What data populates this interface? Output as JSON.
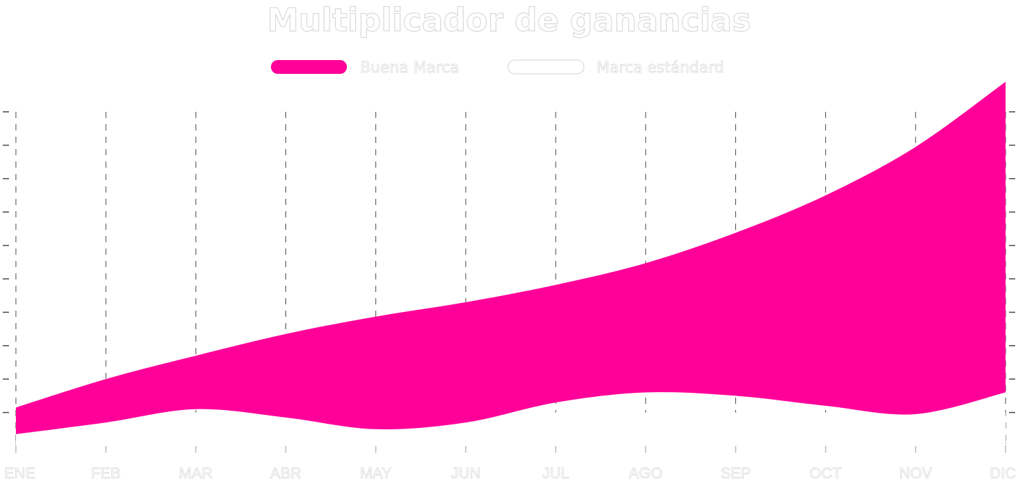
{
  "chart_data": {
    "type": "area",
    "title": "Multiplicador de ganancias",
    "categories": [
      "ENE",
      "FEB",
      "MAR",
      "ABR",
      "MAY",
      "JUN",
      "JUL",
      "AGO",
      "SEP",
      "OCT",
      "NOV",
      "DIC"
    ],
    "series": [
      {
        "name": "Buena Marca",
        "color": "#ff0099",
        "style": "filled band",
        "upper": [
          1.15,
          2.0,
          2.7,
          3.35,
          3.87,
          4.3,
          4.82,
          5.47,
          6.38,
          7.5,
          8.95,
          10.9
        ],
        "lower": [
          0.35,
          0.7,
          1.1,
          0.85,
          0.5,
          0.7,
          1.3,
          1.6,
          1.5,
          1.2,
          0.95,
          1.6
        ]
      },
      {
        "name": "Marca estándard",
        "color": "#ffffff",
        "style": "white fill, no outline",
        "values": [
          1.0,
          1.0,
          1.0,
          1.0,
          1.0,
          1.0,
          1.0,
          1.0,
          1.0,
          1.0,
          1.0,
          1.0
        ]
      }
    ],
    "xlabel": "",
    "ylabel": "",
    "ylim": [
      0,
      10
    ],
    "grid": "vertical dashed lines at each month",
    "legend_position": "top-center"
  }
}
